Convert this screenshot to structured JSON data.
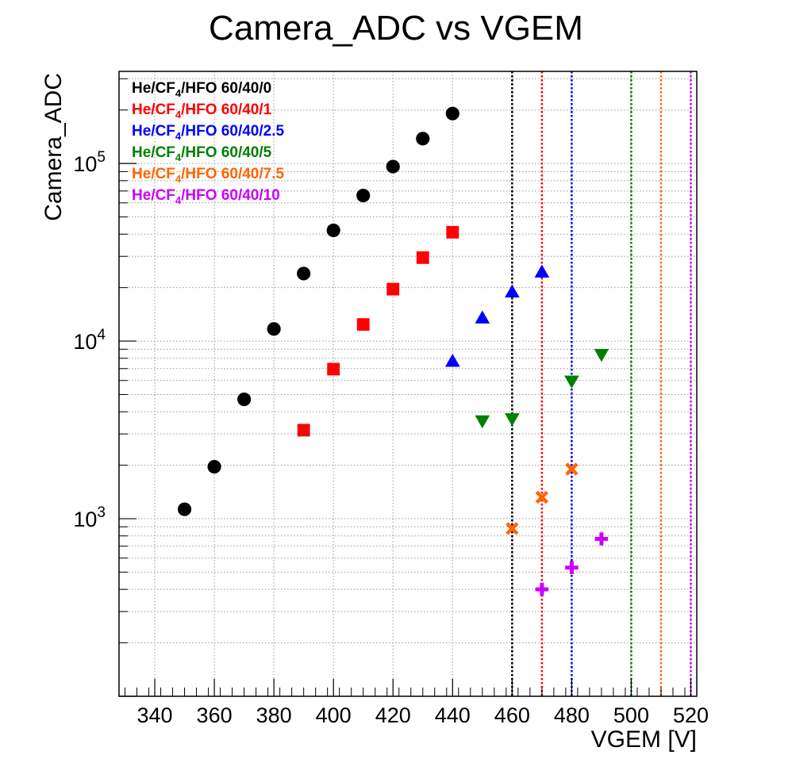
{
  "chart_data": {
    "type": "scatter",
    "title": "Camera_ADC vs VGEM",
    "xlabel": "VGEM [V]",
    "ylabel": "Camera_ADC",
    "xlim": [
      328,
      522
    ],
    "ylim": [
      100,
      330000
    ],
    "yscale": "log",
    "grid": true,
    "legend_position": "top-left",
    "x_ticks": [
      340,
      360,
      380,
      400,
      420,
      440,
      460,
      480,
      500,
      520
    ],
    "x_tick_labels": [
      "340",
      "360",
      "380",
      "400",
      "420",
      "440",
      "460",
      "480",
      "500",
      "520"
    ],
    "y_ticks": [
      1000,
      10000,
      100000
    ],
    "y_tick_labels": [
      {
        "base": "10",
        "exp": "3"
      },
      {
        "base": "10",
        "exp": "4"
      },
      {
        "base": "10",
        "exp": "5"
      }
    ],
    "series": [
      {
        "name": "He/CF4/HFO 60/40/0",
        "legend": {
          "pre": "He/CF",
          "sub": "4",
          "post": "/HFO 60/40/0"
        },
        "color": "#000000",
        "marker": "circle",
        "vline": 460,
        "x": [
          350,
          360,
          370,
          380,
          390,
          400,
          410,
          420,
          430,
          440
        ],
        "y": [
          1130,
          1960,
          4700,
          11700,
          24000,
          42000,
          66000,
          96000,
          138000,
          191000
        ]
      },
      {
        "name": "He/CF4/HFO 60/40/1",
        "legend": {
          "pre": "He/CF",
          "sub": "4",
          "post": "/HFO 60/40/1"
        },
        "color": "#ff0000",
        "marker": "square",
        "vline": 470,
        "x": [
          390,
          400,
          410,
          420,
          430,
          440
        ],
        "y": [
          3150,
          6950,
          12400,
          19600,
          29500,
          41000
        ]
      },
      {
        "name": "He/CF4/HFO 60/40/2.5",
        "legend": {
          "pre": "He/CF",
          "sub": "4",
          "post": "/HFO 60/40/2.5"
        },
        "color": "#0000ff",
        "marker": "triangle-up",
        "vline": 480,
        "x": [
          440,
          450,
          460,
          470
        ],
        "y": [
          7700,
          13500,
          18900,
          24500
        ]
      },
      {
        "name": "He/CF4/HFO 60/40/5",
        "legend": {
          "pre": "He/CF",
          "sub": "4",
          "post": "/HFO 60/40/5"
        },
        "color": "#008000",
        "marker": "triangle-down",
        "vline": 500,
        "x": [
          450,
          460,
          480,
          490
        ],
        "y": [
          3550,
          3650,
          5950,
          8400
        ]
      },
      {
        "name": "He/CF4/HFO 60/40/7.5",
        "legend": {
          "pre": "He/CF",
          "sub": "4",
          "post": "/HFO 60/40/7.5"
        },
        "color": "#ff6600",
        "marker": "x",
        "vline": 510,
        "x": [
          460,
          470,
          480
        ],
        "y": [
          880,
          1320,
          1900
        ]
      },
      {
        "name": "He/CF4/HFO 60/40/10",
        "legend": {
          "pre": "He/CF",
          "sub": "4",
          "post": "/HFO 60/40/10"
        },
        "color": "#cc00ff",
        "marker": "plus",
        "vline": 520,
        "x": [
          470,
          480,
          490
        ],
        "y": [
          400,
          530,
          770
        ]
      }
    ]
  }
}
